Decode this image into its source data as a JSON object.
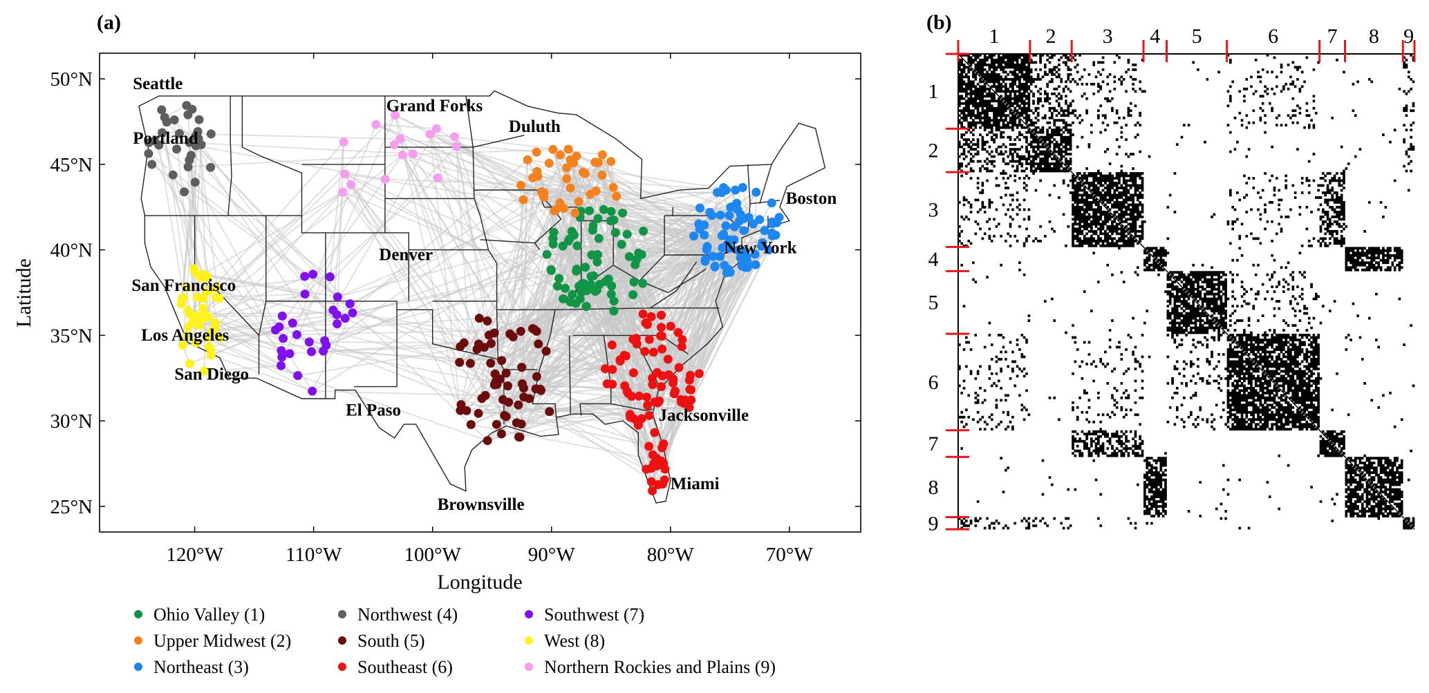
{
  "panel_a": {
    "label": "(a)",
    "xlabel": "Longitude",
    "ylabel": "Latitude",
    "xlim": [
      -128,
      -64
    ],
    "ylim": [
      23.5,
      51.5
    ],
    "x_ticks": [
      {
        "value": -120,
        "label": "120°W"
      },
      {
        "value": -110,
        "label": "110°W"
      },
      {
        "value": -100,
        "label": "100°W"
      },
      {
        "value": -90,
        "label": "90°W"
      },
      {
        "value": -80,
        "label": "80°W"
      },
      {
        "value": -70,
        "label": "70°W"
      }
    ],
    "y_ticks": [
      {
        "value": 25,
        "label": "25°N"
      },
      {
        "value": 30,
        "label": "30°N"
      },
      {
        "value": 35,
        "label": "35°N"
      },
      {
        "value": 40,
        "label": "40°N"
      },
      {
        "value": 45,
        "label": "45°N"
      },
      {
        "value": 50,
        "label": "50°N"
      }
    ],
    "cities": [
      {
        "name": "Seattle",
        "lon": -125.2,
        "lat": 49.4
      },
      {
        "name": "Portland",
        "lon": -125.2,
        "lat": 46.2
      },
      {
        "name": "Grand Forks",
        "lon": -103.9,
        "lat": 48.1
      },
      {
        "name": "Duluth",
        "lon": -93.6,
        "lat": 46.9
      },
      {
        "name": "Boston",
        "lon": -70.3,
        "lat": 42.7
      },
      {
        "name": "New York",
        "lon": -75.5,
        "lat": 39.8
      },
      {
        "name": "Denver",
        "lon": -104.5,
        "lat": 39.4
      },
      {
        "name": "San Francisco",
        "lon": -125.3,
        "lat": 37.6
      },
      {
        "name": "Los Angeles",
        "lon": -124.5,
        "lat": 34.7
      },
      {
        "name": "San Diego",
        "lon": -121.7,
        "lat": 32.4
      },
      {
        "name": "El Paso",
        "lon": -107.3,
        "lat": 30.3
      },
      {
        "name": "Jacksonville",
        "lon": -81.0,
        "lat": 30.0
      },
      {
        "name": "Miami",
        "lon": -80.0,
        "lat": 26.0
      },
      {
        "name": "Brownsville",
        "lon": -99.6,
        "lat": 24.8
      }
    ],
    "regions": [
      {
        "id": 1,
        "name": "Ohio Valley (1)",
        "color": "#129446"
      },
      {
        "id": 2,
        "name": "Upper Midwest (2)",
        "color": "#f5821f"
      },
      {
        "id": 3,
        "name": "Northeast (3)",
        "color": "#1e86f0"
      },
      {
        "id": 4,
        "name": "Northwest (4)",
        "color": "#5e5e5e"
      },
      {
        "id": 5,
        "name": "South (5)",
        "color": "#6b0c0c"
      },
      {
        "id": 6,
        "name": "Southeast (6)",
        "color": "#ee1111"
      },
      {
        "id": 7,
        "name": "Southwest (7)",
        "color": "#7f10f0"
      },
      {
        "id": 8,
        "name": "West (8)",
        "color": "#fff21f"
      },
      {
        "id": 9,
        "name": "Northern Rockies and Plains (9)",
        "color": "#f59ef0"
      }
    ],
    "edge_color": "#c8c8c8"
  },
  "panel_b": {
    "label": "(b)",
    "blocks": [
      {
        "label": "1",
        "size": 31
      },
      {
        "label": "2",
        "size": 18
      },
      {
        "label": "3",
        "size": 31
      },
      {
        "label": "4",
        "size": 10
      },
      {
        "label": "5",
        "size": 26
      },
      {
        "label": "6",
        "size": 40
      },
      {
        "label": "7",
        "size": 11
      },
      {
        "label": "8",
        "size": 25
      },
      {
        "label": "9",
        "size": 5
      }
    ],
    "tick_color": "#e8141c"
  }
}
